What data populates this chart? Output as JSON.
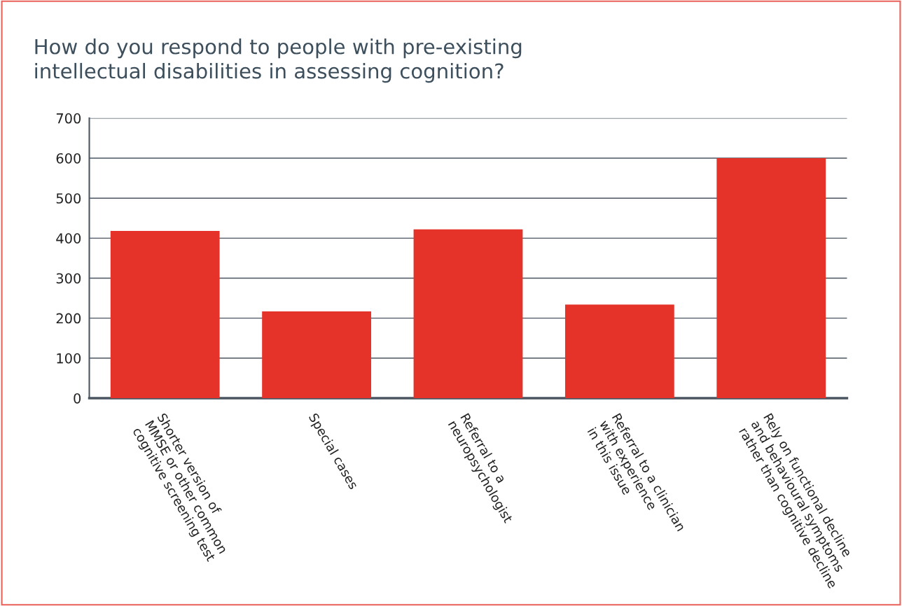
{
  "chart_data": {
    "type": "bar",
    "title": "How do you respond to people with pre-existing\nintellectual disabilities in assessing cognition?",
    "categories": [
      "Shorter version of\nMMSE or other common\ncognitive screening test",
      "Special cases",
      "Referral to a\nneuropsychologist",
      "Referral to a clinician\nwith experience\nin this issue",
      "Rely on functional decline\nand behavioural symptoms\nrather than cognitive decline"
    ],
    "values": [
      418,
      217,
      422,
      234,
      600
    ],
    "color": "#e5332a",
    "ylim": [
      0,
      700
    ],
    "yticks": [
      0,
      100,
      200,
      300,
      400,
      500,
      600,
      700
    ],
    "grid": "y",
    "legend": false
  }
}
